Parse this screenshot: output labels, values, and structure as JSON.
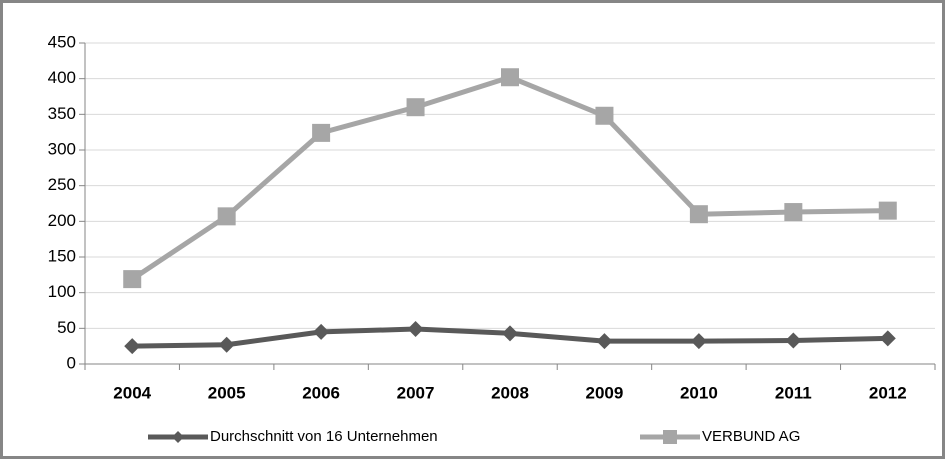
{
  "chart_data": {
    "type": "line",
    "categories": [
      "2004",
      "2005",
      "2006",
      "2007",
      "2008",
      "2009",
      "2010",
      "2011",
      "2012"
    ],
    "series": [
      {
        "name": "Durchschnitt von 16 Unternehmen",
        "color": "#595959",
        "marker": "diamond",
        "values": [
          25,
          27,
          45,
          49,
          43,
          32,
          32,
          33,
          36
        ]
      },
      {
        "name": "VERBUND AG",
        "color": "#a6a6a6",
        "marker": "square",
        "values": [
          119,
          207,
          324,
          360,
          402,
          348,
          210,
          213,
          215
        ]
      }
    ],
    "ylim": [
      0,
      450
    ],
    "yticks": [
      0,
      50,
      100,
      150,
      200,
      250,
      300,
      350,
      400,
      450
    ],
    "grid": true,
    "legend": "bottom"
  }
}
